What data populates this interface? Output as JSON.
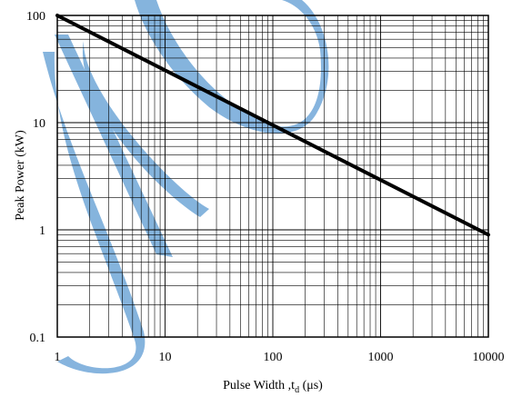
{
  "chart_data": {
    "type": "line",
    "title": "",
    "xlabel": "Pulse Width ,t",
    "xlabel_sub": "d",
    "xlabel_unit": " (μs)",
    "ylabel": "Peak Power  (kW)",
    "x_scale": "log",
    "y_scale": "log",
    "xlim": [
      1,
      10000
    ],
    "ylim": [
      0.1,
      100
    ],
    "x_ticks": [
      1,
      10,
      100,
      1000,
      10000
    ],
    "x_tick_labels": [
      "1",
      "10",
      "100",
      "1000",
      "10000"
    ],
    "y_ticks": [
      0.1,
      1,
      10,
      100
    ],
    "y_tick_labels": [
      "0.1",
      "1",
      "10",
      "100"
    ],
    "grid": true,
    "legend": "none",
    "series": [
      {
        "x": [
          1,
          10000
        ],
        "y": [
          100,
          0.9
        ]
      }
    ],
    "colors": {
      "line": "#000000",
      "grid": "#000000",
      "watermark": "#7fb0dc"
    }
  }
}
